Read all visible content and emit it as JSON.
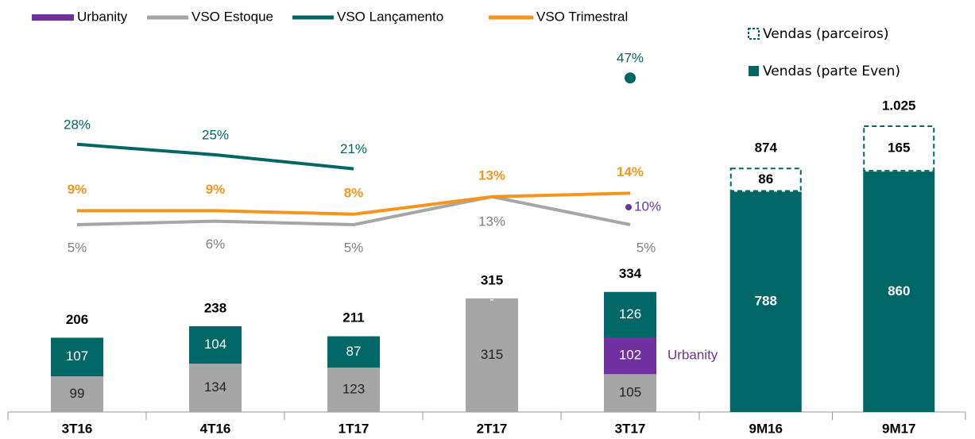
{
  "chart_data": [
    {
      "type": "combo",
      "categories": [
        "3T16",
        "4T16",
        "1T17",
        "2T17",
        "3T17"
      ],
      "bars": [
        {
          "color": "#a6a6a6",
          "values": [
            99,
            134,
            123,
            315,
            105
          ]
        },
        {
          "color": "#7030a0",
          "values": [
            null,
            null,
            null,
            null,
            102
          ]
        },
        {
          "color": "#006666",
          "values": [
            107,
            104,
            87,
            0,
            126
          ],
          "value_labels": [
            "107",
            "104",
            "87",
            "-",
            "126"
          ]
        }
      ],
      "totals": {
        "values": [
          206,
          238,
          211,
          315,
          334
        ]
      },
      "annotation": "Urbanity",
      "ylim": [
        0,
        700
      ],
      "series": [
        {
          "name": "Urbanity",
          "color": "#7030a0",
          "values": [
            null,
            null,
            null,
            null,
            10
          ],
          "value_labels": [
            null,
            null,
            null,
            null,
            "10%"
          ]
        },
        {
          "name": "VSO Estoque",
          "color": "#a6a6a6",
          "values": [
            5,
            6,
            5,
            13,
            5
          ],
          "value_labels": [
            "5%",
            "6%",
            "5%",
            "13%",
            "5%"
          ]
        },
        {
          "name": "VSO Lançamento",
          "color": "#006666",
          "values": [
            28,
            25,
            21,
            null,
            47
          ],
          "value_labels": [
            "28%",
            "25%",
            "21%",
            null,
            "47%"
          ]
        },
        {
          "name": "VSO Trimestral",
          "color": "#f7941d",
          "values": [
            9,
            9,
            8,
            13,
            14
          ],
          "value_labels": [
            "9%",
            "9%",
            "8%",
            "13%",
            "14%"
          ]
        }
      ],
      "y2lim": [
        0,
        50
      ]
    },
    {
      "type": "stacked_bar",
      "categories": [
        "9M16",
        "9M17"
      ],
      "series": [
        {
          "name": "Vendas (parte Even)",
          "color": "#006666",
          "values": [
            788,
            860
          ]
        },
        {
          "name": "Vendas (parceiros)",
          "color": "#006666",
          "values": [
            86,
            165
          ]
        }
      ],
      "totals": {
        "values": [
          874,
          1025
        ],
        "value_labels": [
          "874",
          "1.025"
        ]
      },
      "ylim": [
        0,
        1400
      ]
    }
  ]
}
